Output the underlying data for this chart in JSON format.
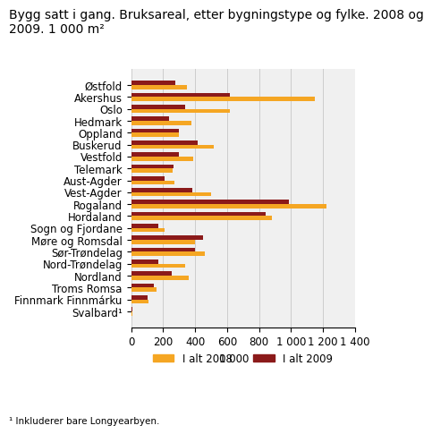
{
  "title": "Bygg satt i gang. Bruksareal, etter bygningstype og fylke. 2008 og\n2009. 1 000 m²",
  "xlabel": "1 000 m²",
  "footnote": "¹ Inkluderer bare Longyearbyen.",
  "categories": [
    "Østfold",
    "Akershus",
    "Oslo",
    "Hedmark",
    "Oppland",
    "Buskerud",
    "Vestfold",
    "Telemark",
    "Aust-Agder",
    "Vest-Agder",
    "Rogaland",
    "Hordaland",
    "Sogn og Fjordane",
    "Møre og Romsdal",
    "Sør-Trøndelag",
    "Nord-Trøndelag",
    "Nordland",
    "Troms Romsa",
    "Finnmark Finnmárku",
    "Svalbard¹"
  ],
  "values_2008": [
    350,
    1150,
    620,
    380,
    300,
    520,
    390,
    260,
    270,
    500,
    1220,
    880,
    210,
    400,
    460,
    340,
    360,
    160,
    110,
    10
  ],
  "values_2009": [
    275,
    620,
    340,
    240,
    300,
    415,
    300,
    265,
    210,
    385,
    990,
    840,
    170,
    450,
    400,
    170,
    255,
    140,
    105,
    10
  ],
  "color_2008": "#F5A623",
  "color_2009": "#8B1A1A",
  "xlim": [
    0,
    1400
  ],
  "xticks": [
    0,
    200,
    400,
    600,
    800,
    1000,
    1200,
    1400
  ],
  "xtick_labels": [
    "0",
    "200",
    "400",
    "600",
    "800",
    "1 000",
    "1 200",
    "1 400"
  ],
  "legend_2008": "I alt 2008",
  "legend_2009": "I alt 2009",
  "bg_color": "#ffffff",
  "plot_bg_color": "#f0f0f0",
  "grid_color": "#cccccc",
  "title_fontsize": 10,
  "tick_fontsize": 8.5,
  "label_fontsize": 8.5
}
